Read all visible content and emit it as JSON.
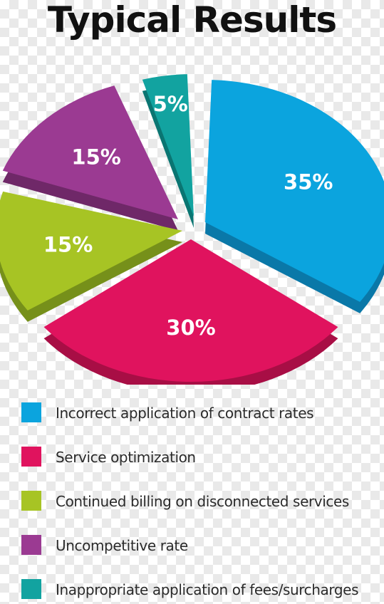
{
  "title": "Typical Results",
  "chart_data": {
    "type": "pie",
    "title": "Typical Results",
    "slices": [
      {
        "label": "Incorrect application of contract rates",
        "value": 35,
        "value_label": "35%",
        "color": "#0ba4de",
        "side_color": "#0a78a8"
      },
      {
        "label": "Service optimization",
        "value": 30,
        "value_label": "30%",
        "color": "#e0135e",
        "side_color": "#a80e45"
      },
      {
        "label": "Continued billing on disconnected services",
        "value": 15,
        "value_label": "15%",
        "color": "#a7c424",
        "side_color": "#76901a"
      },
      {
        "label": "Uncompetitive rate",
        "value": 15,
        "value_label": "15%",
        "color": "#9b3a92",
        "side_color": "#6f2868"
      },
      {
        "label": "Inappropriate application of fees/surcharges",
        "value": 5,
        "value_label": "5%",
        "color": "#12a3a0",
        "side_color": "#0a7572"
      }
    ],
    "legend_position": "bottom"
  }
}
